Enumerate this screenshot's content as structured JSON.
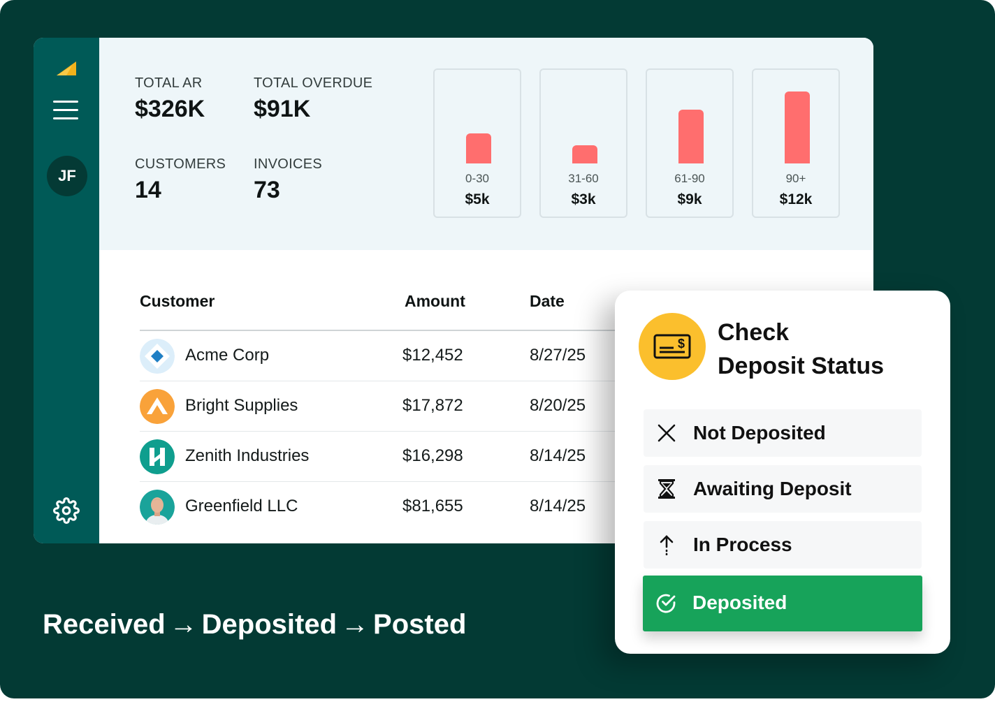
{
  "sidebar": {
    "avatar_initials": "JF"
  },
  "summary": {
    "total_ar_label": "TOTAL AR",
    "total_ar_value": "$326K",
    "total_overdue_label": "TOTAL OVERDUE",
    "total_overdue_value": "$91K",
    "customers_label": "CUSTOMERS",
    "customers_value": "14",
    "invoices_label": "INVOICES",
    "invoices_value": "73"
  },
  "aging": [
    {
      "range": "0-30",
      "amount": "$5k",
      "value": 5
    },
    {
      "range": "31-60",
      "amount": "$3k",
      "value": 3
    },
    {
      "range": "61-90",
      "amount": "$9k",
      "value": 9
    },
    {
      "range": "90+",
      "amount": "$12k",
      "value": 12
    }
  ],
  "table": {
    "headers": {
      "customer": "Customer",
      "amount": "Amount",
      "date": "Date"
    },
    "rows": [
      {
        "name": "Acme Corp",
        "amount": "$12,452",
        "date": "8/27/25",
        "logo": "acme-diamond-logo"
      },
      {
        "name": "Bright Supplies",
        "amount": "$17,872",
        "date": "8/20/25",
        "logo": "bright-supplies-logo"
      },
      {
        "name": "Zenith Industries",
        "amount": "$16,298",
        "date": "8/14/25",
        "logo": "zenith-h-logo"
      },
      {
        "name": "Greenfield LLC",
        "amount": "$81,655",
        "date": "8/14/25",
        "logo": "person-avatar"
      }
    ]
  },
  "status_card": {
    "title_line1": "Check",
    "title_line2": "Deposit Status",
    "options": [
      {
        "label": "Not Deposited",
        "icon": "close-icon"
      },
      {
        "label": "Awaiting Deposit",
        "icon": "hourglass-icon"
      },
      {
        "label": "In Process",
        "icon": "arrow-up-icon"
      },
      {
        "label": "Deposited",
        "icon": "check-circle-icon",
        "active": true
      }
    ],
    "active_color": "#17a35a"
  },
  "tagline": {
    "step1": "Received",
    "arrow": "→",
    "step2": "Deposited",
    "step3": "Posted"
  },
  "colors": {
    "background": "#033a34",
    "sidebar": "#005a57",
    "aging_bar": "#ff6e6e",
    "check_icon_bg": "#fbbf2d"
  }
}
